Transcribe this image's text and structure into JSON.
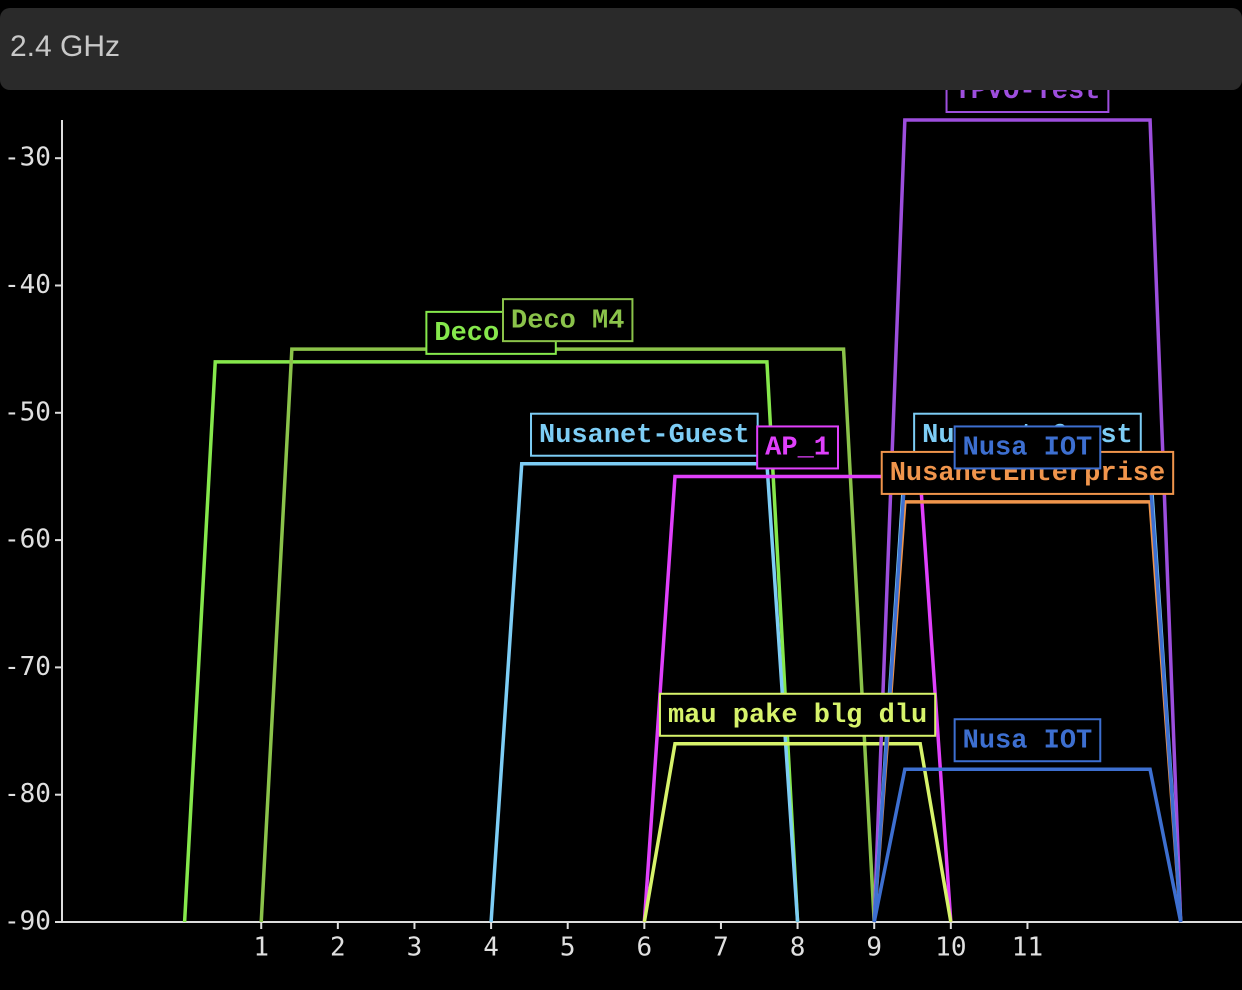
{
  "header": {
    "title": "2.4 GHz"
  },
  "chart_data": {
    "type": "line",
    "xlim": [
      -1.6,
      13.8
    ],
    "xticks": [
      1,
      2,
      3,
      4,
      5,
      6,
      7,
      8,
      9,
      10,
      11
    ],
    "ylim": [
      -90,
      -27
    ],
    "yticks": [
      -90,
      -80,
      -70,
      -60,
      -50,
      -40,
      -30
    ],
    "series": [
      {
        "name": "Deco M4",
        "color": "#86e84c",
        "x": [
          0,
          0.4,
          7.6,
          8
        ],
        "values": [
          -90,
          -46,
          -46,
          -90
        ]
      },
      {
        "name": "Deco M4",
        "color": "#8bc34a",
        "x": [
          1,
          1.4,
          8.6,
          9
        ],
        "values": [
          -90,
          -45,
          -45,
          -90
        ]
      },
      {
        "name": "Nusanet-Guest",
        "color": "#7dcdf5",
        "x": [
          4,
          4.4,
          7.6,
          8
        ],
        "values": [
          -90,
          -54,
          -54,
          -90
        ]
      },
      {
        "name": "AP_1",
        "color": "#e040fb",
        "x": [
          6,
          6.4,
          9.6,
          10
        ],
        "values": [
          -90,
          -55,
          -55,
          -90
        ]
      },
      {
        "name": "mau pake blg dlu",
        "color": "#d7f36b",
        "x": [
          6,
          6.4,
          9.6,
          10
        ],
        "values": [
          -90,
          -76,
          -76,
          -90
        ]
      },
      {
        "name": "TPVO-Test",
        "color": "#9d4edd",
        "x": [
          9,
          9.4,
          12.6,
          13
        ],
        "values": [
          -90,
          -27,
          -27,
          -90
        ]
      },
      {
        "name": "Nusanet-Guest",
        "color": "#7dcdf5",
        "x": [
          9,
          9.4,
          12.6,
          13
        ],
        "values": [
          -90,
          -54,
          -54,
          -90
        ]
      },
      {
        "name": "NusanetEnterprise",
        "color": "#f0954c",
        "x": [
          9,
          9.4,
          12.6,
          13
        ],
        "values": [
          -90,
          -57,
          -57,
          -90
        ]
      },
      {
        "name": "Nusa IOT",
        "color": "#3d6fd0",
        "x": [
          9,
          9.4,
          12.6,
          13
        ],
        "values": [
          -90,
          -55,
          -55,
          -90
        ]
      },
      {
        "name": "Nusa IOT",
        "color": "#3d6fd0",
        "x": [
          9,
          9.4,
          12.6,
          13
        ],
        "values": [
          -90,
          -78,
          -78,
          -90
        ]
      }
    ]
  }
}
